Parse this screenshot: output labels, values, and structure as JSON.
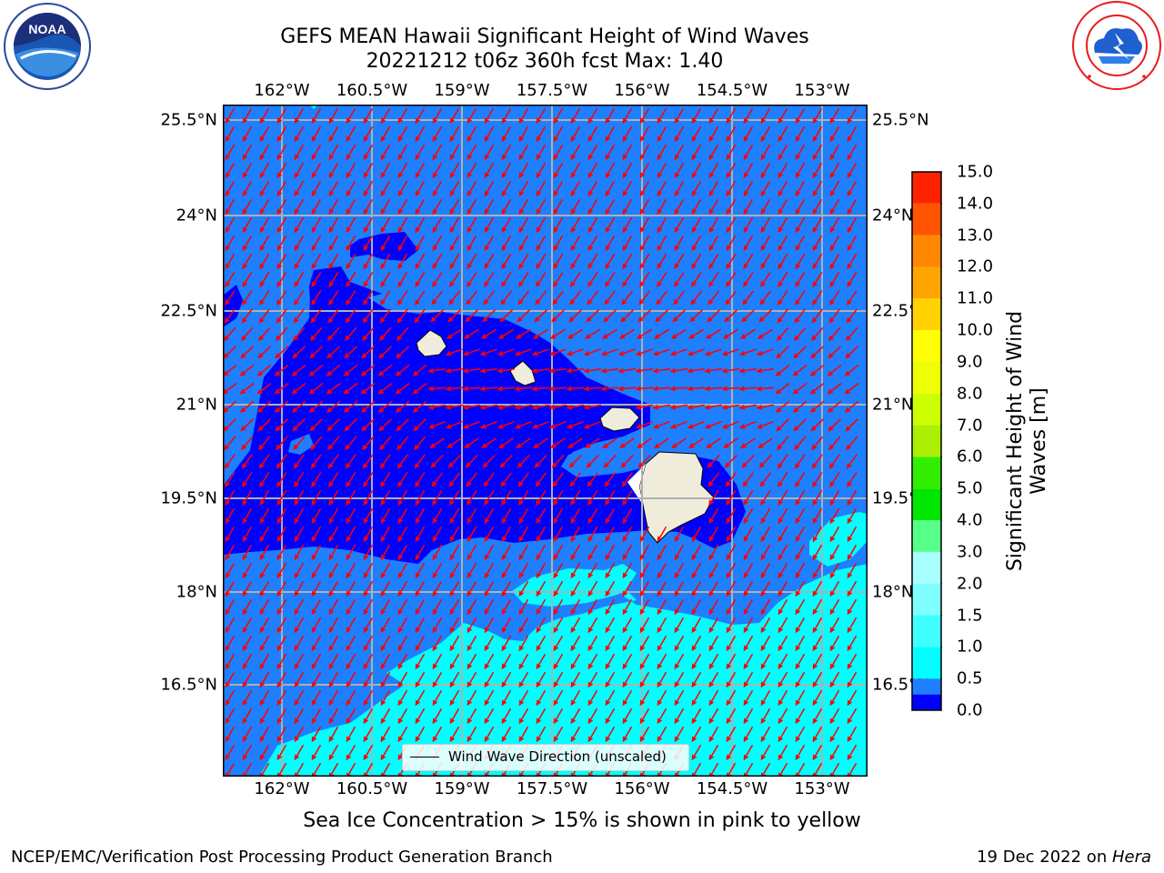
{
  "title": {
    "line1": "GEFS MEAN Hawaii Significant Height of Wind Waves",
    "line2": "20221212 t06z 360h fcst   Max: 1.40"
  },
  "logos": {
    "left": {
      "icon": "noaa-logo",
      "text": "NOAA",
      "ring_text": "NATIONAL OCEANIC AND ATMOSPHERIC ADMINISTRATION · U.S. DEPARTMENT OF COMMERCE"
    },
    "right": {
      "icon": "national-weather-service-logo",
      "ring_text": "NATIONAL WEATHER SERVICE"
    }
  },
  "map": {
    "lon_ticks": [
      "162°W",
      "160.5°W",
      "159°W",
      "157.5°W",
      "156°W",
      "154.5°W",
      "153°W"
    ],
    "lon_values": [
      -162,
      -160.5,
      -159,
      -157.5,
      -156,
      -154.5,
      -153
    ],
    "lat_ticks": [
      "25.5°N",
      "24°N",
      "22.5°N",
      "21°N",
      "19.5°N",
      "18°N",
      "16.5°N"
    ],
    "lat_values": [
      25.5,
      24,
      22.5,
      21,
      19.5,
      18,
      16.5
    ],
    "lon_range": [
      -162.99,
      -152.24
    ],
    "lat_range": [
      15.25,
      25.7
    ],
    "grid": true,
    "land_color": "#efecdc",
    "arrow_color": "#ff0000",
    "wind_wave_direction": "mostly toward south-southwest, easterly near the islands"
  },
  "colorbar": {
    "title": "Significant Height of Wind Waves [m]",
    "ticks": [
      "0.0",
      "0.5",
      "1.0",
      "1.5",
      "2.0",
      "3.0",
      "4.0",
      "5.0",
      "6.0",
      "7.0",
      "8.0",
      "9.0",
      "10.0",
      "11.0",
      "12.0",
      "13.0",
      "14.0",
      "15.0"
    ],
    "colors": [
      "#0000ff",
      "#1e7fff",
      "#00ffff",
      "#3fffff",
      "#7fffff",
      "#aaffff",
      "#55ff88",
      "#00e600",
      "#33ee00",
      "#aaf000",
      "#ccff00",
      "#eeff00",
      "#ffff00",
      "#ffd200",
      "#ffa500",
      "#ff8800",
      "#ff5500",
      "#ff2200",
      "#ff0000"
    ]
  },
  "legend": {
    "label": "Wind Wave Direction (unscaled)"
  },
  "note": "Sea Ice Concentration > 15% is shown in pink to yellow",
  "footer": {
    "left": "NCEP/EMC/Verification Post Processing Product Generation Branch",
    "date": "19 Dec 2022 on ",
    "machine": "Hera"
  }
}
